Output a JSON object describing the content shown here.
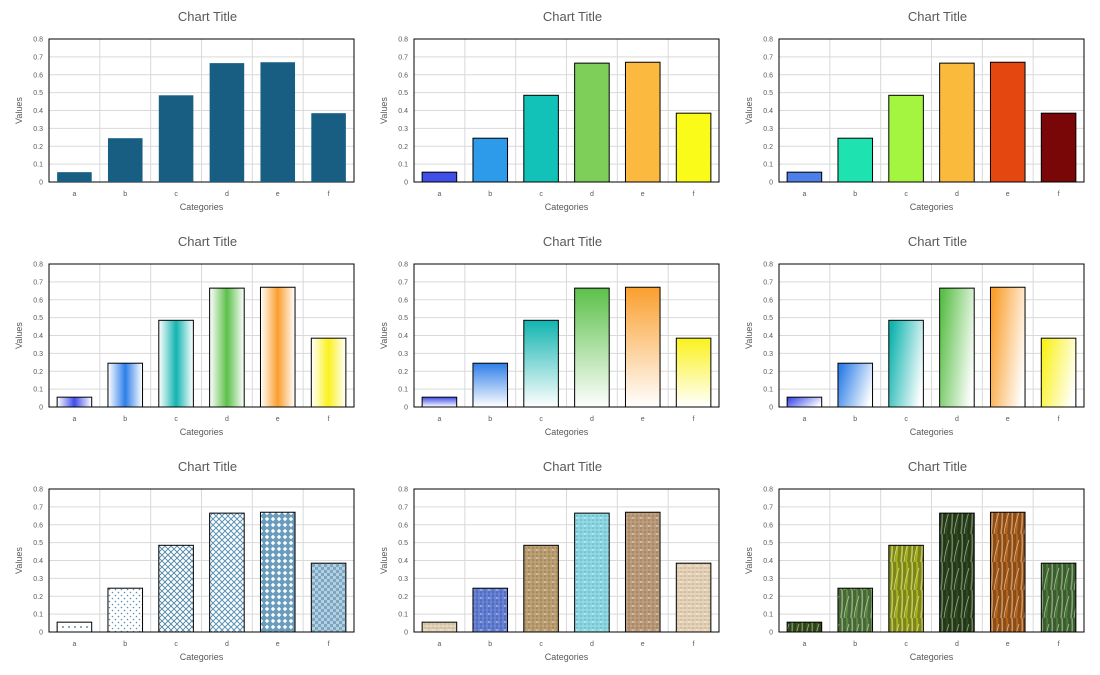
{
  "chart_data": [
    {
      "type": "bar",
      "style": "solid",
      "title": "Chart Title",
      "xlabel": "Categories",
      "ylabel": "Values",
      "categories": [
        "a",
        "b",
        "c",
        "d",
        "e",
        "f"
      ],
      "values": [
        0.055,
        0.245,
        0.485,
        0.665,
        0.67,
        0.385
      ],
      "ylim": [
        0,
        0.8
      ],
      "yticks": [
        "0",
        "0.1",
        "0.2",
        "0.3",
        "0.4",
        "0.5",
        "0.6",
        "0.7",
        "0.8"
      ],
      "grid": true,
      "colors": [
        "#175E82",
        "#175E82",
        "#175E82",
        "#175E82",
        "#175E82",
        "#175E82"
      ]
    },
    {
      "type": "bar",
      "style": "solid",
      "title": "Chart Title",
      "xlabel": "Categories",
      "ylabel": "Values",
      "categories": [
        "a",
        "b",
        "c",
        "d",
        "e",
        "f"
      ],
      "values": [
        0.055,
        0.245,
        0.485,
        0.665,
        0.67,
        0.385
      ],
      "ylim": [
        0,
        0.8
      ],
      "yticks": [
        "0",
        "0.1",
        "0.2",
        "0.3",
        "0.4",
        "0.5",
        "0.6",
        "0.7",
        "0.8"
      ],
      "grid": true,
      "colors": [
        "#3F4FE8",
        "#2E9BEA",
        "#12C2B8",
        "#7ECF5A",
        "#FBB940",
        "#FBFB1A"
      ]
    },
    {
      "type": "bar",
      "style": "solid",
      "title": "Chart Title",
      "xlabel": "Categories",
      "ylabel": "Values",
      "categories": [
        "a",
        "b",
        "c",
        "d",
        "e",
        "f"
      ],
      "values": [
        0.055,
        0.245,
        0.485,
        0.665,
        0.67,
        0.385
      ],
      "ylim": [
        0,
        0.8
      ],
      "yticks": [
        "0",
        "0.1",
        "0.2",
        "0.3",
        "0.4",
        "0.5",
        "0.6",
        "0.7",
        "0.8"
      ],
      "grid": true,
      "colors": [
        "#4D7FE8",
        "#1EE3B0",
        "#A3F53F",
        "#FABA3C",
        "#E44710",
        "#7A0707"
      ]
    },
    {
      "type": "bar",
      "style": "gradient-horizontal",
      "title": "Chart Title",
      "xlabel": "Categories",
      "ylabel": "Values",
      "categories": [
        "a",
        "b",
        "c",
        "d",
        "e",
        "f"
      ],
      "values": [
        0.055,
        0.245,
        0.485,
        0.665,
        0.67,
        0.385
      ],
      "ylim": [
        0,
        0.8
      ],
      "yticks": [
        "0",
        "0.1",
        "0.2",
        "0.3",
        "0.4",
        "0.5",
        "0.6",
        "0.7",
        "0.8"
      ],
      "grid": true,
      "colors": [
        "#3F4FE8",
        "#2E7FE8",
        "#12B4B0",
        "#5CC04A",
        "#FA9F2E",
        "#FAF21E"
      ]
    },
    {
      "type": "bar",
      "style": "gradient-vertical",
      "title": "Chart Title",
      "xlabel": "Categories",
      "ylabel": "Values",
      "categories": [
        "a",
        "b",
        "c",
        "d",
        "e",
        "f"
      ],
      "values": [
        0.055,
        0.245,
        0.485,
        0.665,
        0.67,
        0.385
      ],
      "ylim": [
        0,
        0.8
      ],
      "yticks": [
        "0",
        "0.1",
        "0.2",
        "0.3",
        "0.4",
        "0.5",
        "0.6",
        "0.7",
        "0.8"
      ],
      "grid": true,
      "colors": [
        "#3F4FE8",
        "#2E7FE8",
        "#12B4B0",
        "#5CC04A",
        "#FA9F2E",
        "#FAF21E"
      ]
    },
    {
      "type": "bar",
      "style": "gradient-diagonal",
      "title": "Chart Title",
      "xlabel": "Categories",
      "ylabel": "Values",
      "categories": [
        "a",
        "b",
        "c",
        "d",
        "e",
        "f"
      ],
      "values": [
        0.055,
        0.245,
        0.485,
        0.665,
        0.67,
        0.385
      ],
      "ylim": [
        0,
        0.8
      ],
      "yticks": [
        "0",
        "0.1",
        "0.2",
        "0.3",
        "0.4",
        "0.5",
        "0.6",
        "0.7",
        "0.8"
      ],
      "grid": true,
      "colors": [
        "#3F4FE8",
        "#2E7FE8",
        "#12B4B0",
        "#5CC04A",
        "#FA9F2E",
        "#FAF21E"
      ]
    },
    {
      "type": "bar",
      "style": "pattern",
      "title": "Chart Title",
      "xlabel": "Categories",
      "ylabel": "Values",
      "categories": [
        "a",
        "b",
        "c",
        "d",
        "e",
        "f"
      ],
      "values": [
        0.055,
        0.245,
        0.485,
        0.665,
        0.67,
        0.385
      ],
      "ylim": [
        0,
        0.8
      ],
      "yticks": [
        "0",
        "0.1",
        "0.2",
        "0.3",
        "0.4",
        "0.5",
        "0.6",
        "0.7",
        "0.8"
      ],
      "grid": true,
      "colors": [
        "#3A6A88",
        "#5B8FAE",
        "#4E86A6",
        "#5B92B4",
        "#6A9CBC",
        "#7AA8C4"
      ]
    },
    {
      "type": "bar",
      "style": "texture",
      "title": "Chart Title",
      "xlabel": "Categories",
      "ylabel": "Values",
      "categories": [
        "a",
        "b",
        "c",
        "d",
        "e",
        "f"
      ],
      "values": [
        0.055,
        0.245,
        0.485,
        0.665,
        0.67,
        0.385
      ],
      "ylim": [
        0,
        0.8
      ],
      "yticks": [
        "0",
        "0.1",
        "0.2",
        "0.3",
        "0.4",
        "0.5",
        "0.6",
        "0.7",
        "0.8"
      ],
      "grid": true,
      "colors": [
        "#E2D2B4",
        "#5A78D2",
        "#B89A6A",
        "#86D8E4",
        "#B89672",
        "#E6D2B4"
      ]
    },
    {
      "type": "bar",
      "style": "photo",
      "title": "Chart Title",
      "xlabel": "Categories",
      "ylabel": "Values",
      "categories": [
        "a",
        "b",
        "c",
        "d",
        "e",
        "f"
      ],
      "values": [
        0.055,
        0.245,
        0.485,
        0.665,
        0.67,
        0.385
      ],
      "ylim": [
        0,
        0.8
      ],
      "yticks": [
        "0",
        "0.1",
        "0.2",
        "0.3",
        "0.4",
        "0.5",
        "0.6",
        "0.7",
        "0.8"
      ],
      "grid": true,
      "colors": [
        "#3C5A1E",
        "#5E8A46",
        "#A8B21E",
        "#2E4A1E",
        "#B8661E",
        "#4E7A3C"
      ]
    }
  ]
}
